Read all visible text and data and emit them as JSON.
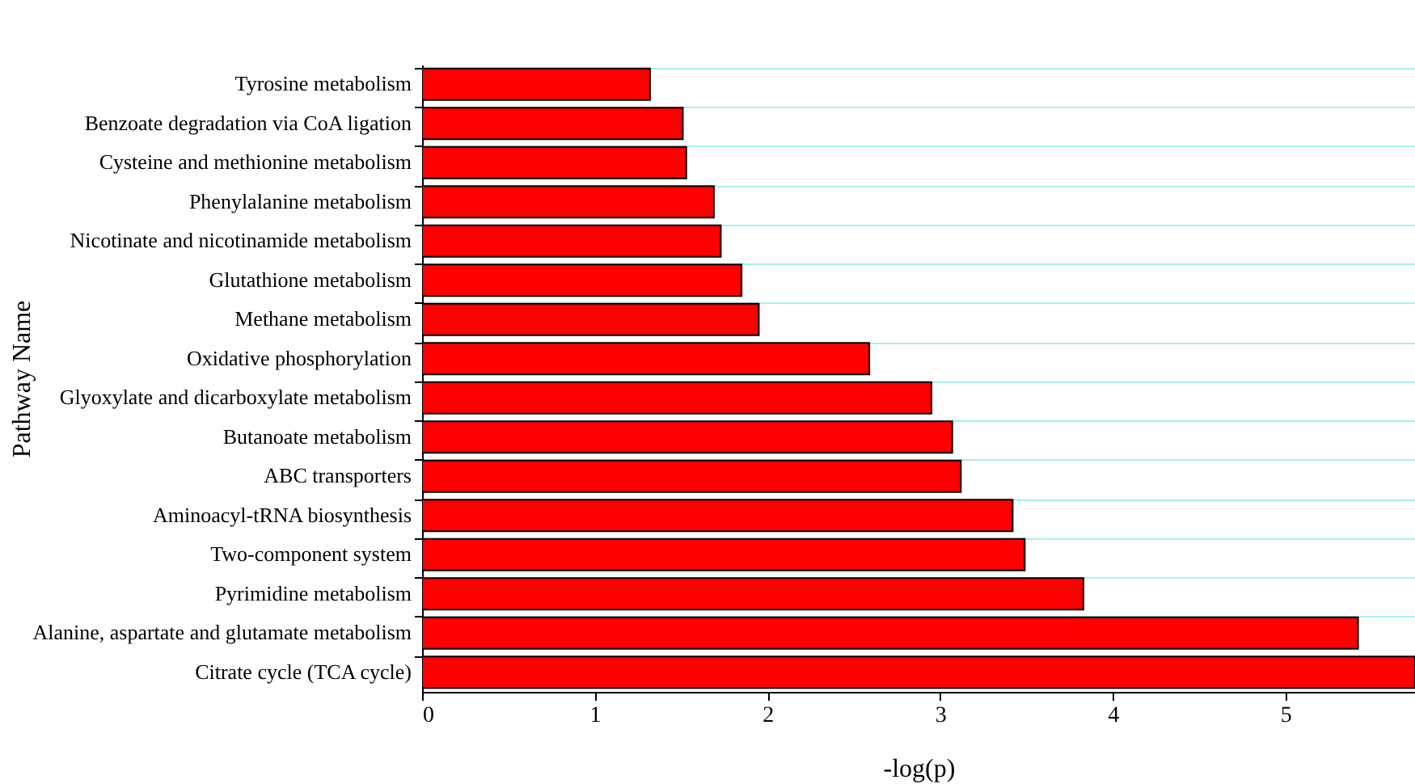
{
  "chart_data": {
    "type": "bar",
    "orientation": "horizontal",
    "xlabel": "-log(p)",
    "ylabel": "Pathway Name",
    "categories": [
      "Tyrosine metabolism",
      "Benzoate degradation via CoA ligation",
      "Cysteine and methionine metabolism",
      "Phenylalanine metabolism",
      "Nicotinate and nicotinamide metabolism",
      "Glutathione metabolism",
      "Methane metabolism",
      "Oxidative phosphorylation",
      "Glyoxylate and dicarboxylate metabolism",
      "Butanoate metabolism",
      "ABC transporters",
      "Aminoacyl-tRNA biosynthesis",
      "Two-component system",
      "Pyrimidine metabolism",
      "Alanine, aspartate and glutamate metabolism",
      "Citrate cycle (TCA cycle)"
    ],
    "values": [
      1.32,
      1.51,
      1.53,
      1.69,
      1.73,
      1.85,
      1.95,
      2.59,
      2.95,
      3.07,
      3.12,
      3.42,
      3.49,
      3.83,
      5.42,
      5.75
    ],
    "color": "#ff0000",
    "xlim": [
      0,
      5.75
    ],
    "xticks": [
      0,
      1,
      2,
      3,
      4,
      5
    ],
    "grid": "y"
  }
}
